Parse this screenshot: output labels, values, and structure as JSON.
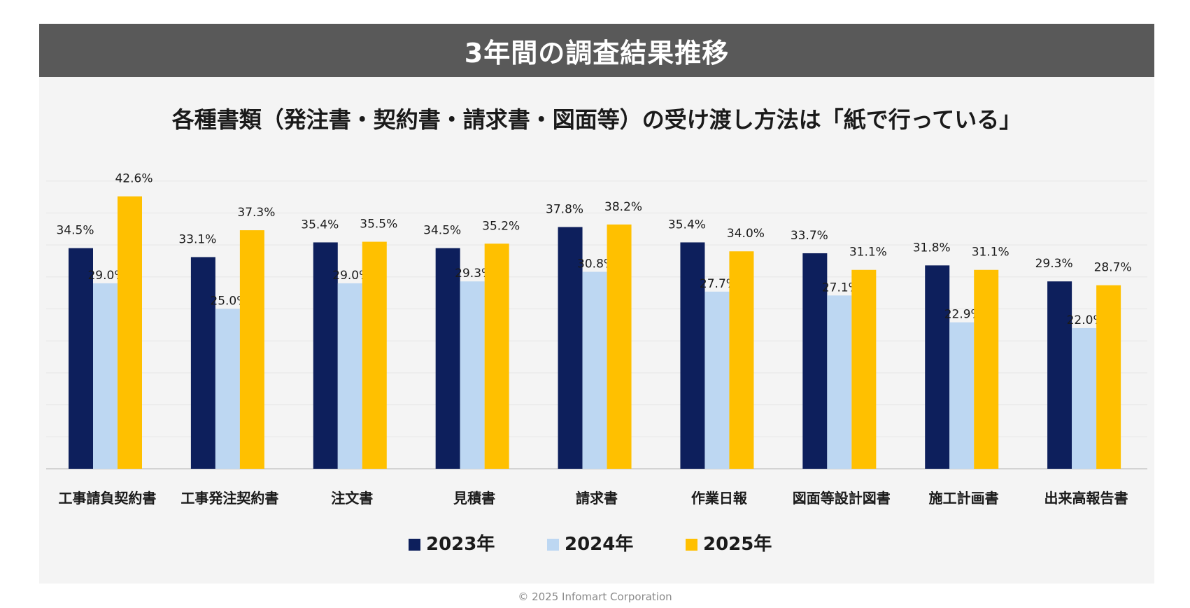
{
  "header": {
    "title": "3年間の調査結果推移"
  },
  "footer": {
    "copyright": "© 2025 Infomart Corporation"
  },
  "colors": {
    "series_2023": "#0d1f5c",
    "series_2024": "#bdd7f2",
    "series_2025": "#ffc000",
    "header_bg": "#595959",
    "panel_bg": "#f4f4f4"
  },
  "chart_data": {
    "type": "bar",
    "title": "各種書類（発注書・契約書・請求書・図面等）の受け渡し方法は「紙で行っている」",
    "xlabel": "",
    "ylabel": "",
    "ylim": [
      0,
      45
    ],
    "grid": true,
    "legend_position": "bottom",
    "value_suffix": "%",
    "categories": [
      "工事請負契約書",
      "工事発注契約書",
      "注文書",
      "見積書",
      "請求書",
      "作業日報",
      "図面等設計図書",
      "施工計画書",
      "出来高報告書"
    ],
    "series": [
      {
        "name": "2023年",
        "values": [
          34.5,
          33.1,
          35.4,
          34.5,
          37.8,
          35.4,
          33.7,
          31.8,
          29.3
        ]
      },
      {
        "name": "2024年",
        "values": [
          29.0,
          25.0,
          29.0,
          29.3,
          30.8,
          27.7,
          27.1,
          22.9,
          22.0
        ]
      },
      {
        "name": "2025年",
        "values": [
          42.6,
          37.3,
          35.5,
          35.2,
          38.2,
          34.0,
          31.1,
          31.1,
          28.7
        ]
      }
    ]
  }
}
